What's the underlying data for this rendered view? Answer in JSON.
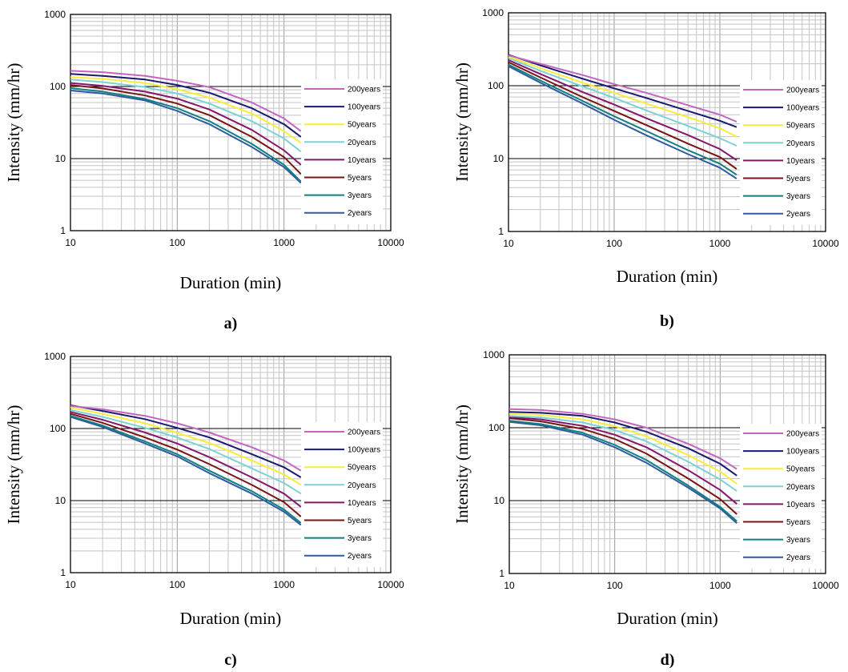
{
  "legend": [
    "200years",
    "100years",
    "50years",
    "20years",
    "10years",
    "5years",
    "3years",
    "2years"
  ],
  "colors": [
    "#c466c0",
    "#1b1870",
    "#f5ee3a",
    "#7cd2d5",
    "#84176e",
    "#7a1414",
    "#127f7f",
    "#2f5ba0"
  ],
  "chart_data": [
    {
      "type": "line",
      "panel_label": "a)",
      "xlabel": "Duration (min)",
      "ylabel": "Intensity (mm/hr)",
      "xscale": "log",
      "yscale": "log",
      "xlim": [
        10,
        10000
      ],
      "ylim": [
        1,
        1000
      ],
      "xticks": [
        "10",
        "100",
        "1000",
        "10000"
      ],
      "yticks": [
        "1",
        "10",
        "100",
        "1000"
      ],
      "grid": true,
      "legend_position": "right",
      "x": [
        10,
        20,
        50,
        100,
        200,
        500,
        1000,
        1440
      ],
      "series": [
        {
          "name": "200years",
          "values": [
            165,
            158,
            140,
            120,
            98,
            60,
            36,
            24
          ]
        },
        {
          "name": "100years",
          "values": [
            150,
            140,
            125,
            105,
            82,
            50,
            30,
            20
          ]
        },
        {
          "name": "50years",
          "values": [
            135,
            128,
            112,
            92,
            70,
            42,
            24,
            16.5
          ]
        },
        {
          "name": "20years",
          "values": [
            125,
            115,
            98,
            80,
            58,
            33,
            19,
            12.5
          ]
        },
        {
          "name": "10years",
          "values": [
            112,
            102,
            85,
            68,
            48,
            25,
            13,
            8.2
          ]
        },
        {
          "name": "5years",
          "values": [
            105,
            94,
            75,
            58,
            40,
            20,
            10.5,
            6.1
          ]
        },
        {
          "name": "3years",
          "values": [
            95,
            85,
            67,
            50,
            33,
            16,
            8.2,
            4.8
          ]
        },
        {
          "name": "2years",
          "values": [
            88,
            80,
            64,
            46,
            30,
            14.5,
            7.6,
            4.6
          ]
        }
      ]
    },
    {
      "type": "line",
      "panel_label": "b)",
      "xlabel": "Duration (min)",
      "ylabel": "Intensity (mm/hr)",
      "xscale": "log",
      "yscale": "log",
      "xlim": [
        10,
        10000
      ],
      "ylim": [
        1,
        1000
      ],
      "xticks": [
        "10",
        "100",
        "1000",
        "10000"
      ],
      "yticks": [
        "1",
        "10",
        "100",
        "1000"
      ],
      "grid": true,
      "legend_position": "right",
      "x": [
        10,
        20,
        50,
        100,
        200,
        500,
        1000,
        1440
      ],
      "series": [
        {
          "name": "200years",
          "values": [
            260,
            200,
            140,
            105,
            80,
            54,
            40,
            32
          ]
        },
        {
          "name": "100years",
          "values": [
            265,
            190,
            125,
            92,
            68,
            45,
            33,
            27
          ]
        },
        {
          "name": "50years",
          "values": [
            250,
            175,
            110,
            80,
            57,
            37,
            26,
            20
          ]
        },
        {
          "name": "20years",
          "values": [
            240,
            160,
            98,
            68,
            46,
            28,
            19,
            15
          ]
        },
        {
          "name": "10years",
          "values": [
            225,
            145,
            82,
            55,
            36,
            21,
            13.5,
            9.5
          ]
        },
        {
          "name": "5years",
          "values": [
            210,
            130,
            70,
            45,
            29,
            16,
            10.5,
            7.2
          ]
        },
        {
          "name": "3years",
          "values": [
            195,
            118,
            62,
            38,
            24,
            13,
            8.5,
            6
          ]
        },
        {
          "name": "2years",
          "values": [
            185,
            110,
            57,
            34,
            21,
            11.5,
            7.5,
            5.3
          ]
        }
      ]
    },
    {
      "type": "line",
      "panel_label": "c)",
      "xlabel": "Duration (min)",
      "ylabel": "Intensity (mm/hr)",
      "xscale": "log",
      "yscale": "log",
      "xlim": [
        10,
        10000
      ],
      "ylim": [
        1,
        1000
      ],
      "xticks": [
        "10",
        "100",
        "1000",
        "10000"
      ],
      "yticks": [
        "1",
        "10",
        "100",
        "1000"
      ],
      "grid": true,
      "legend_position": "right",
      "x": [
        10,
        20,
        50,
        100,
        200,
        500,
        1000,
        1440
      ],
      "series": [
        {
          "name": "200years",
          "values": [
            205,
            185,
            150,
            118,
            88,
            55,
            36,
            26
          ]
        },
        {
          "name": "100years",
          "values": [
            210,
            175,
            135,
            102,
            75,
            44,
            29,
            21
          ]
        },
        {
          "name": "50years",
          "values": [
            195,
            160,
            118,
            87,
            63,
            36,
            23,
            16.5
          ]
        },
        {
          "name": "20years",
          "values": [
            180,
            145,
            102,
            75,
            52,
            28,
            17.5,
            12.5
          ]
        },
        {
          "name": "10years",
          "values": [
            170,
            132,
            88,
            62,
            40,
            21,
            12.5,
            8.2
          ]
        },
        {
          "name": "5years",
          "values": [
            160,
            120,
            75,
            51,
            32,
            16.5,
            9.5,
            6
          ]
        },
        {
          "name": "3years",
          "values": [
            150,
            110,
            66,
            44,
            26,
            13.5,
            7.5,
            4.9
          ]
        },
        {
          "name": "2years",
          "values": [
            145,
            105,
            62,
            41,
            24,
            12.5,
            7,
            4.6
          ]
        }
      ]
    },
    {
      "type": "line",
      "panel_label": "d)",
      "xlabel": "Duration (min)",
      "ylabel": "Intensity (mm/hr)",
      "xscale": "log",
      "yscale": "log",
      "xlim": [
        10,
        10000
      ],
      "ylim": [
        1,
        1000
      ],
      "xticks": [
        "10",
        "100",
        "1000",
        "10000"
      ],
      "yticks": [
        "1",
        "10",
        "100",
        "1000"
      ],
      "grid": true,
      "legend_position": "right",
      "x": [
        10,
        20,
        50,
        100,
        200,
        500,
        1000,
        1440
      ],
      "series": [
        {
          "name": "200years",
          "values": [
            180,
            175,
            155,
            130,
            100,
            60,
            38,
            27
          ]
        },
        {
          "name": "100years",
          "values": [
            165,
            160,
            145,
            118,
            88,
            52,
            32,
            22
          ]
        },
        {
          "name": "50years",
          "values": [
            155,
            150,
            130,
            105,
            76,
            42,
            25,
            17
          ]
        },
        {
          "name": "20years",
          "values": [
            145,
            138,
            118,
            93,
            65,
            34,
            19.5,
            13.5
          ]
        },
        {
          "name": "10years",
          "values": [
            140,
            130,
            106,
            80,
            54,
            26,
            14,
            9
          ]
        },
        {
          "name": "5years",
          "values": [
            135,
            122,
            96,
            70,
            44,
            20,
            10.5,
            6.5
          ]
        },
        {
          "name": "3years",
          "values": [
            125,
            112,
            85,
            58,
            36,
            16,
            8.2,
            5.2
          ]
        },
        {
          "name": "2years",
          "values": [
            120,
            108,
            80,
            54,
            33,
            15,
            7.8,
            4.9
          ]
        }
      ]
    }
  ]
}
